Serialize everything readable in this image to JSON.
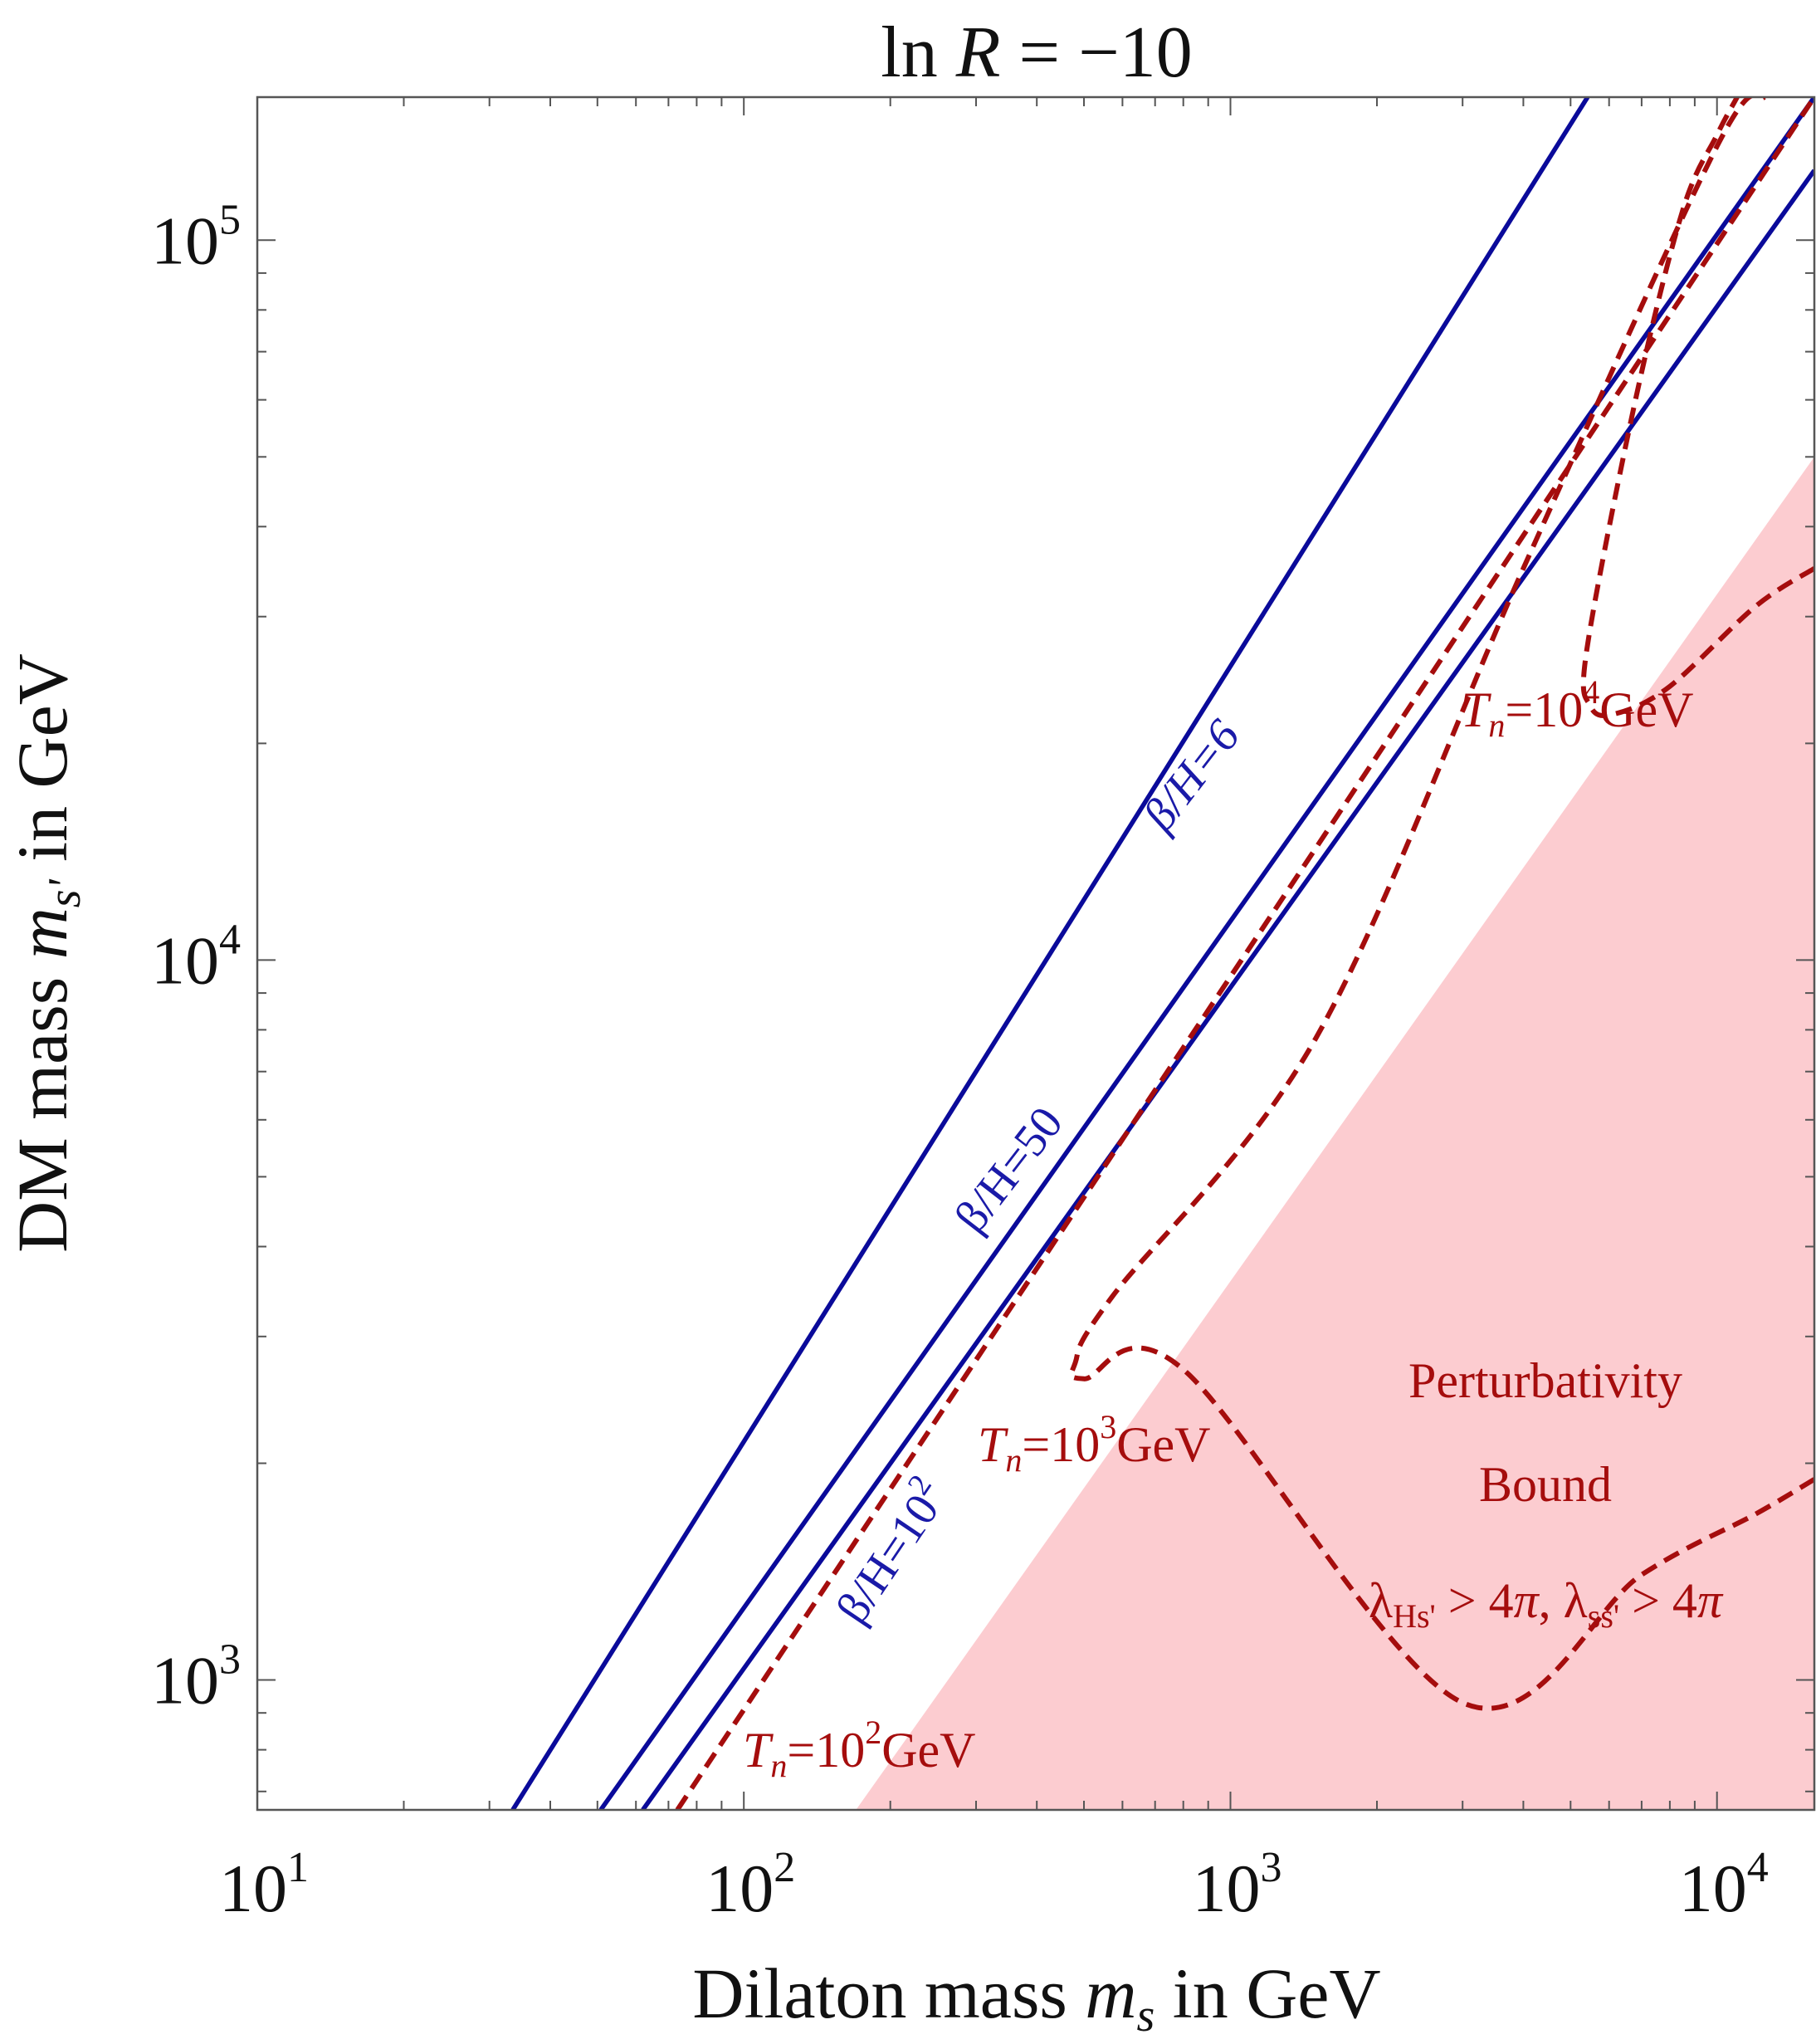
{
  "chart_data": {
    "type": "line",
    "title": "ln R = −10",
    "title_parts": {
      "prefix": "ln ",
      "var": "R",
      "suffix": " = −10"
    },
    "xlabel": "Dilaton mass m_s in GeV",
    "xlabel_parts": {
      "prefix": "Dilaton mass ",
      "var": "m",
      "sub": "s",
      "suffix": " in GeV"
    },
    "ylabel": "DM mass m_s' in GeV",
    "ylabel_parts": {
      "prefix": "DM mass ",
      "var": "m",
      "sub": "s'",
      "suffix": " in GeV"
    },
    "xscale": "log",
    "yscale": "log",
    "xlim": [
      10,
      15850
    ],
    "ylim": [
      660,
      158000
    ],
    "x_ticks": [
      {
        "value": 10,
        "base": "10",
        "exp": "1"
      },
      {
        "value": 100,
        "base": "10",
        "exp": "2"
      },
      {
        "value": 1000,
        "base": "10",
        "exp": "3"
      },
      {
        "value": 10000,
        "base": "10",
        "exp": "4"
      }
    ],
    "y_ticks": [
      {
        "value": 1000,
        "base": "10",
        "exp": "3"
      },
      {
        "value": 10000,
        "base": "10",
        "exp": "4"
      },
      {
        "value": 100000,
        "base": "10",
        "exp": "5"
      }
    ],
    "colors": {
      "blue": "#0a0a9a",
      "red": "#a50d0d",
      "region": "#fcccd0",
      "frame": "#555555"
    },
    "series": [
      {
        "name": "β/H=6",
        "style": "solid",
        "color": "#0a0a9a",
        "points": [
          [
            33.5,
            660
          ],
          [
            5420,
            158000
          ]
        ]
      },
      {
        "name": "β/H=50",
        "style": "solid",
        "color": "#0a0a9a",
        "points": [
          [
            50.8,
            660
          ],
          [
            15850,
            158000
          ]
        ]
      },
      {
        "name": "β/H=10^2",
        "style": "solid",
        "color": "#0a0a9a",
        "points": [
          [
            62,
            660
          ],
          [
            15850,
            125000
          ]
        ]
      },
      {
        "name": "T_n=10^2 GeV",
        "style": "dashed",
        "color": "#a50d0d",
        "points": [
          [
            73,
            660
          ],
          [
            15850,
            158000
          ]
        ]
      },
      {
        "name": "T_n=10^3 GeV",
        "style": "dashed",
        "color": "#a50d0d",
        "points": [
          [
            15850,
            1900
          ],
          [
            12000,
            1700
          ],
          [
            7000,
            1400
          ],
          [
            3000,
            930
          ],
          [
            800,
            2700
          ],
          [
            500,
            2620
          ],
          [
            480,
            2760
          ],
          [
            570,
            3400
          ],
          [
            1500,
            7800
          ],
          [
            4000,
            35000
          ],
          [
            10000,
            135000
          ],
          [
            12500,
            158000
          ]
        ]
      },
      {
        "name": "T_n=10^4 GeV",
        "style": "dashed",
        "color": "#a50d0d",
        "points": [
          [
            15850,
            35000
          ],
          [
            12000,
            31000
          ],
          [
            8000,
            24000
          ],
          [
            6200,
            22000
          ],
          [
            5500,
            22500
          ],
          [
            5400,
            27000
          ],
          [
            6800,
            60000
          ],
          [
            8500,
            110000
          ],
          [
            10000,
            140000
          ],
          [
            11000,
            158000
          ]
        ]
      }
    ],
    "regions": [
      {
        "name": "Perturbativity Bound",
        "condition": "λ_Hs' > 4π, λ_ss' > 4π",
        "color": "#fcccd0",
        "polygon": [
          [
            170,
            660
          ],
          [
            15850,
            660
          ],
          [
            15850,
            50000
          ]
        ]
      }
    ],
    "annotations": {
      "beta6": {
        "prefix": "β/H=6"
      },
      "beta50": {
        "prefix": "β/H=50"
      },
      "beta100": {
        "prefix": "β/H=10",
        "exp": "2"
      },
      "tn2": {
        "var": "T",
        "sub": "n",
        "mid": "=10",
        "exp": "2",
        "unit": "GeV"
      },
      "tn3": {
        "var": "T",
        "sub": "n",
        "mid": "=10",
        "exp": "3",
        "unit": "GeV"
      },
      "tn4": {
        "var": "T",
        "sub": "n",
        "mid": "=10",
        "exp": "4",
        "unit": "GeV"
      },
      "region_line1": "Perturbativity",
      "region_line2": "Bound",
      "region_cond": {
        "l1": "λ",
        "s1": "Hs'",
        "m1": " > 4",
        "pi1": "π",
        "comma": ", ",
        "l2": "λ",
        "s2": "ss'",
        "m2": " > 4",
        "pi2": "π"
      }
    }
  }
}
